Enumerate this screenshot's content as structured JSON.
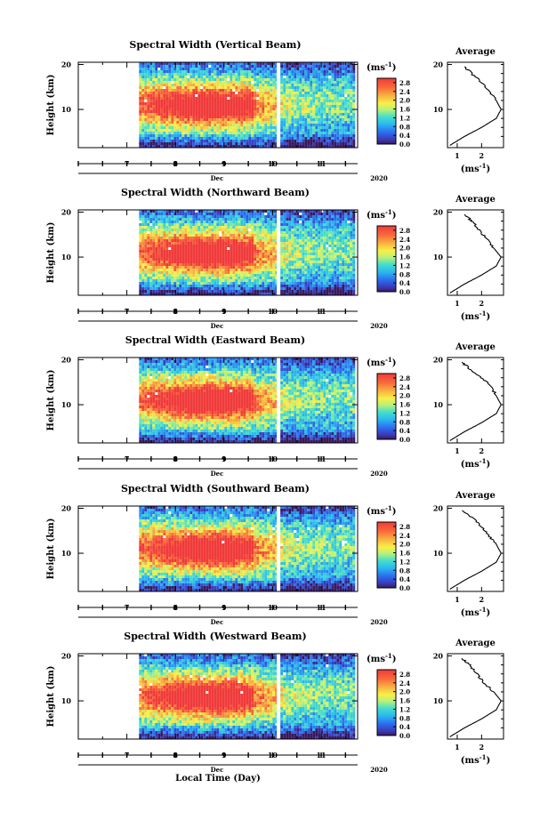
{
  "xlabel": "Local Time (Day)",
  "month_label": "Dec",
  "year_label": "2020",
  "colorbar": {
    "unit_label": "(ms",
    "unit_sup": "-1",
    "unit_close": ")",
    "ticks": [
      "0.0",
      "0.4",
      "0.8",
      "1.2",
      "1.6",
      "2.0",
      "2.4",
      "2.8"
    ],
    "range": [
      0,
      3.0
    ]
  },
  "avg_panel": {
    "title": "Average",
    "xlabel": "(ms",
    "xlabel_sup": "-1",
    "xlabel_close": ")"
  },
  "chart_data": [
    {
      "type": "heatmap",
      "title": "Spectral Width (Vertical Beam)",
      "ylabel": "Height (km)",
      "x_ticks": [
        "7",
        "8",
        "9",
        "10",
        "11"
      ],
      "xlim": [
        6.0,
        11.75
      ],
      "y_ticks": [
        "10",
        "20"
      ],
      "ylim": [
        1.5,
        20.5
      ],
      "data_start_day": 7.25,
      "data_end_day": 11.7,
      "gap_day": 10.12,
      "strong_core": {
        "center_day": 8.7,
        "center_km": 10.5,
        "value": 2.8
      },
      "average_profile": {
        "type": "line",
        "x_ticks": [
          "1",
          "2"
        ],
        "xlim": [
          0.6,
          2.9
        ],
        "height_km": [
          2,
          4,
          6,
          8,
          10,
          12,
          14,
          16,
          18,
          19.5
        ],
        "width_ms": [
          0.7,
          1.3,
          2.0,
          2.6,
          2.8,
          2.6,
          2.3,
          2.0,
          1.6,
          1.3
        ]
      }
    },
    {
      "type": "heatmap",
      "title": "Spectral Width (Northward Beam)",
      "ylabel": "Height (km)",
      "x_ticks": [
        "7",
        "8",
        "9",
        "10",
        "11"
      ],
      "xlim": [
        6.0,
        11.75
      ],
      "y_ticks": [
        "10",
        "20"
      ],
      "ylim": [
        1.5,
        20.5
      ],
      "data_start_day": 7.25,
      "data_end_day": 11.7,
      "gap_day": 10.12,
      "strong_core": {
        "center_day": 8.7,
        "center_km": 10.5,
        "value": 2.8
      },
      "average_profile": {
        "type": "line",
        "x_ticks": [
          "1",
          "2"
        ],
        "xlim": [
          0.6,
          2.9
        ],
        "height_km": [
          2,
          4,
          6,
          8,
          10,
          12,
          14,
          16,
          18,
          19.5
        ],
        "width_ms": [
          0.7,
          1.3,
          2.0,
          2.6,
          2.8,
          2.5,
          2.2,
          1.9,
          1.6,
          1.3
        ]
      }
    },
    {
      "type": "heatmap",
      "title": "Spectral Width (Eastward Beam)",
      "ylabel": "Height (km)",
      "x_ticks": [
        "7",
        "8",
        "9",
        "10",
        "11"
      ],
      "xlim": [
        6.0,
        11.75
      ],
      "y_ticks": [
        "10",
        "20"
      ],
      "ylim": [
        1.5,
        20.5
      ],
      "data_start_day": 7.25,
      "data_end_day": 11.7,
      "gap_day": 10.12,
      "strong_core": {
        "center_day": 8.7,
        "center_km": 10.5,
        "value": 2.8
      },
      "average_profile": {
        "type": "line",
        "x_ticks": [
          "1",
          "2"
        ],
        "xlim": [
          0.6,
          2.9
        ],
        "height_km": [
          2,
          4,
          6,
          8,
          10,
          12,
          14,
          16,
          18,
          19.5
        ],
        "width_ms": [
          0.7,
          1.3,
          2.0,
          2.6,
          2.8,
          2.6,
          2.4,
          2.0,
          1.5,
          1.2
        ]
      }
    },
    {
      "type": "heatmap",
      "title": "Spectral Width (Southward Beam)",
      "ylabel": "Height (km)",
      "x_ticks": [
        "7",
        "8",
        "9",
        "10",
        "11"
      ],
      "xlim": [
        6.0,
        11.75
      ],
      "y_ticks": [
        "10",
        "20"
      ],
      "ylim": [
        1.5,
        20.5
      ],
      "data_start_day": 7.25,
      "data_end_day": 11.7,
      "gap_day": 10.12,
      "strong_core": {
        "center_day": 8.7,
        "center_km": 10.5,
        "value": 2.8
      },
      "average_profile": {
        "type": "line",
        "x_ticks": [
          "1",
          "2"
        ],
        "xlim": [
          0.6,
          2.9
        ],
        "height_km": [
          2,
          4,
          6,
          8,
          10,
          12,
          14,
          16,
          18,
          19.5
        ],
        "width_ms": [
          0.7,
          1.3,
          2.0,
          2.6,
          2.8,
          2.6,
          2.3,
          2.0,
          1.6,
          1.2
        ]
      }
    },
    {
      "type": "heatmap",
      "title": "Spectral Width (Westward Beam)",
      "ylabel": "Height (km)",
      "x_ticks": [
        "7",
        "8",
        "9",
        "10",
        "11"
      ],
      "xlim": [
        6.0,
        11.75
      ],
      "y_ticks": [
        "10",
        "20"
      ],
      "ylim": [
        1.5,
        20.5
      ],
      "data_start_day": 7.25,
      "data_end_day": 11.7,
      "gap_day": 10.12,
      "strong_core": {
        "center_day": 8.7,
        "center_km": 10.5,
        "value": 2.8
      },
      "average_profile": {
        "type": "line",
        "x_ticks": [
          "1",
          "2"
        ],
        "xlim": [
          0.6,
          2.9
        ],
        "height_km": [
          2,
          4,
          6,
          8,
          10,
          12,
          14,
          16,
          18,
          19.5
        ],
        "width_ms": [
          0.7,
          1.3,
          2.0,
          2.6,
          2.8,
          2.5,
          2.1,
          1.8,
          1.5,
          1.2
        ]
      }
    }
  ]
}
